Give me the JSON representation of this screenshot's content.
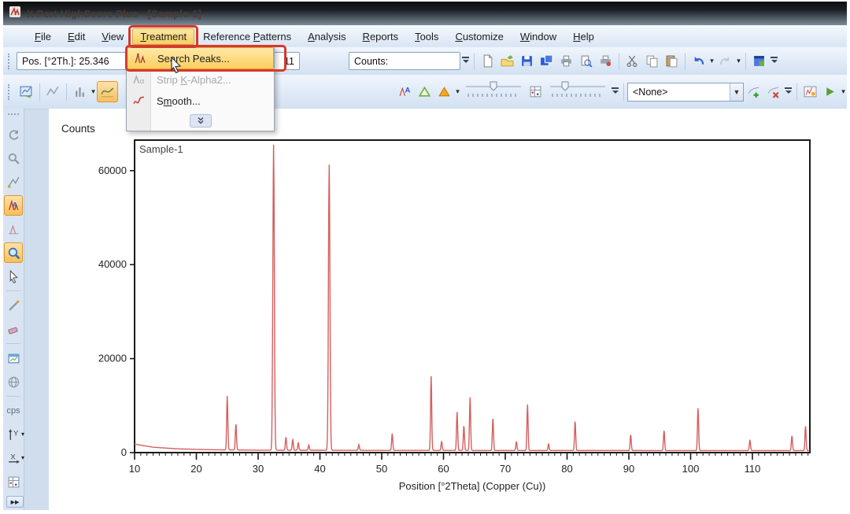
{
  "window_title": "X Pert HighScore Plus - [Sample-1]",
  "annotation_color": "#d6392c",
  "menu_bar": {
    "items": [
      {
        "label": "File",
        "u": 0
      },
      {
        "label": "Edit",
        "u": 0
      },
      {
        "label": "View",
        "u": 0
      },
      {
        "label": "Treatment",
        "u": 0,
        "active": true,
        "annotated": true
      },
      {
        "label": "Reference Patterns",
        "u": 10
      },
      {
        "label": "Analysis",
        "u": 0
      },
      {
        "label": "Reports",
        "u": 0
      },
      {
        "label": "Tools",
        "u": 0
      },
      {
        "label": "Customize",
        "u": 0
      },
      {
        "label": "Window",
        "u": 0
      },
      {
        "label": "Help",
        "u": 0
      }
    ]
  },
  "treatment_menu": {
    "items": [
      {
        "label": "Search Peaks...",
        "icon": "search-peaks-icon",
        "state": "highlighted",
        "annotated": true,
        "u": -1
      },
      {
        "label": "Strip K-Alpha2...",
        "icon": "strip-kalpha2-icon",
        "state": "disabled",
        "u": 6
      },
      {
        "label": "Smooth...",
        "icon": "smooth-icon",
        "state": "normal",
        "u": 1
      }
    ]
  },
  "status_toolbar": {
    "pos_field": "Pos. [°2Th.]: 25.346",
    "pos_field_tail": "11",
    "counts_label": "Counts:",
    "counts_value": ""
  },
  "standard_toolbar": {
    "icons": [
      "new-document-icon",
      "open-folder-icon",
      "save-icon",
      "save-all-icon",
      "print-icon",
      "print-preview-icon",
      "page-setup-icon",
      "cut-icon",
      "copy-icon",
      "paste-icon",
      "undo-icon",
      "redo-icon",
      "app-window-icon"
    ]
  },
  "graphics_toolbar": {
    "left_icons": [
      "chart-export-icon",
      "line-chart-icon",
      "histogram-icon",
      "background-fit-icon"
    ],
    "analyze_icons": [
      "peak-list-icon",
      "triangle-outline-icon",
      "triangle-filled-icon"
    ],
    "table_icon": "data-table-icon",
    "combo_value": "<None>",
    "pattern_icons": [
      "add-pattern-icon",
      "delete-pattern-icon"
    ],
    "run_icons": [
      "distance-chart-icon",
      "play-icon"
    ]
  },
  "sidebar": {
    "cps_label": "cps",
    "items": [
      {
        "name": "pan-refresh-icon"
      },
      {
        "name": "zoom-select-icon"
      },
      {
        "name": "route-icon"
      },
      {
        "name": "peak-mode-icon",
        "state": "active"
      },
      {
        "name": "profile-chart-icon"
      },
      {
        "name": "zoom-lens-icon",
        "state": "active"
      },
      {
        "name": "pointer-icon"
      },
      {
        "name": "sep"
      },
      {
        "name": "pen-icon"
      },
      {
        "name": "eraser-icon"
      },
      {
        "name": "sep"
      },
      {
        "name": "window-chart-icon"
      },
      {
        "name": "globe-icon"
      },
      {
        "name": "sep"
      },
      {
        "name": "cps-label",
        "text": "cps"
      },
      {
        "name": "y-axis-icon",
        "caret": true
      },
      {
        "name": "x-axis-icon",
        "caret": true
      },
      {
        "name": "data-table-icon"
      }
    ]
  },
  "chart_data": {
    "type": "line",
    "series_label": "Sample-1",
    "ylabel": "Counts",
    "xlabel": "Position [°2Theta] (Copper (Cu))",
    "xlim": [
      10,
      119.3
    ],
    "ylim": [
      0,
      66500
    ],
    "xticks": [
      10,
      20,
      30,
      40,
      50,
      60,
      70,
      80,
      90,
      100,
      110
    ],
    "yticks": [
      0,
      20000,
      40000,
      60000
    ],
    "line_color": "#d4605f",
    "grid": false,
    "baseline": [
      [
        10,
        1800
      ],
      [
        13,
        1150
      ],
      [
        17,
        800
      ],
      [
        22,
        620
      ],
      [
        30,
        520
      ],
      [
        50,
        470
      ],
      [
        80,
        450
      ],
      [
        119.3,
        430
      ]
    ],
    "peaks": [
      [
        25.0,
        11500
      ],
      [
        26.4,
        5600
      ],
      [
        32.5,
        65000,
        0.17
      ],
      [
        34.5,
        2800
      ],
      [
        35.6,
        2300
      ],
      [
        36.5,
        1600
      ],
      [
        38.2,
        1100
      ],
      [
        41.5,
        60800,
        0.17
      ],
      [
        46.3,
        1200
      ],
      [
        51.7,
        3600
      ],
      [
        58.0,
        15800
      ],
      [
        59.7,
        1900
      ],
      [
        62.2,
        8200
      ],
      [
        63.3,
        5300
      ],
      [
        64.3,
        11300
      ],
      [
        68.0,
        6900
      ],
      [
        71.8,
        1900
      ],
      [
        73.6,
        9800
      ],
      [
        77.0,
        1400
      ],
      [
        81.3,
        6300
      ],
      [
        90.3,
        3400
      ],
      [
        95.7,
        4300
      ],
      [
        101.2,
        9000
      ],
      [
        109.6,
        2300
      ],
      [
        116.4,
        3200
      ],
      [
        118.6,
        5200
      ]
    ]
  }
}
